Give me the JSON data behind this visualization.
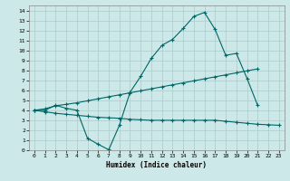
{
  "xlabel": "Humidex (Indice chaleur)",
  "bg_color": "#cce8e8",
  "grid_color": "#aacccc",
  "line_color": "#006666",
  "xlim": [
    -0.5,
    23.5
  ],
  "ylim": [
    0,
    14.5
  ],
  "xticks": [
    0,
    1,
    2,
    3,
    4,
    5,
    6,
    7,
    8,
    9,
    10,
    11,
    12,
    13,
    14,
    15,
    16,
    17,
    18,
    19,
    20,
    21,
    22,
    23
  ],
  "yticks": [
    0,
    1,
    2,
    3,
    4,
    5,
    6,
    7,
    8,
    9,
    10,
    11,
    12,
    13,
    14
  ],
  "line1_x": [
    0,
    1,
    2,
    3,
    4,
    5,
    6,
    7,
    8,
    9,
    10,
    11,
    12,
    13,
    14,
    15,
    16,
    17,
    18,
    19,
    20,
    21
  ],
  "line1_y": [
    4.0,
    4.0,
    4.5,
    4.2,
    4.0,
    1.2,
    0.6,
    0.05,
    2.5,
    5.8,
    7.4,
    9.2,
    10.5,
    11.1,
    12.2,
    13.4,
    13.8,
    12.1,
    9.5,
    9.7,
    7.2,
    4.5
  ],
  "line2_x": [
    0,
    1,
    2,
    3,
    4,
    5,
    6,
    7,
    8,
    9,
    10,
    11,
    12,
    13,
    14,
    15,
    16,
    17,
    18,
    19,
    20,
    21
  ],
  "line2_y": [
    4.0,
    4.15,
    4.45,
    4.6,
    4.75,
    4.95,
    5.15,
    5.35,
    5.55,
    5.75,
    5.95,
    6.15,
    6.35,
    6.55,
    6.75,
    6.95,
    7.15,
    7.35,
    7.55,
    7.75,
    7.95,
    8.15
  ],
  "line3_x": [
    0,
    1,
    2,
    3,
    4,
    5,
    6,
    7,
    8,
    9,
    10,
    11,
    12,
    13,
    14,
    15,
    16,
    17,
    18,
    19,
    20,
    21,
    22,
    23
  ],
  "line3_y": [
    4.0,
    3.85,
    3.7,
    3.6,
    3.5,
    3.4,
    3.3,
    3.25,
    3.2,
    3.1,
    3.05,
    3.0,
    3.0,
    3.0,
    3.0,
    3.0,
    3.0,
    3.0,
    2.9,
    2.8,
    2.7,
    2.6,
    2.55,
    2.5
  ]
}
